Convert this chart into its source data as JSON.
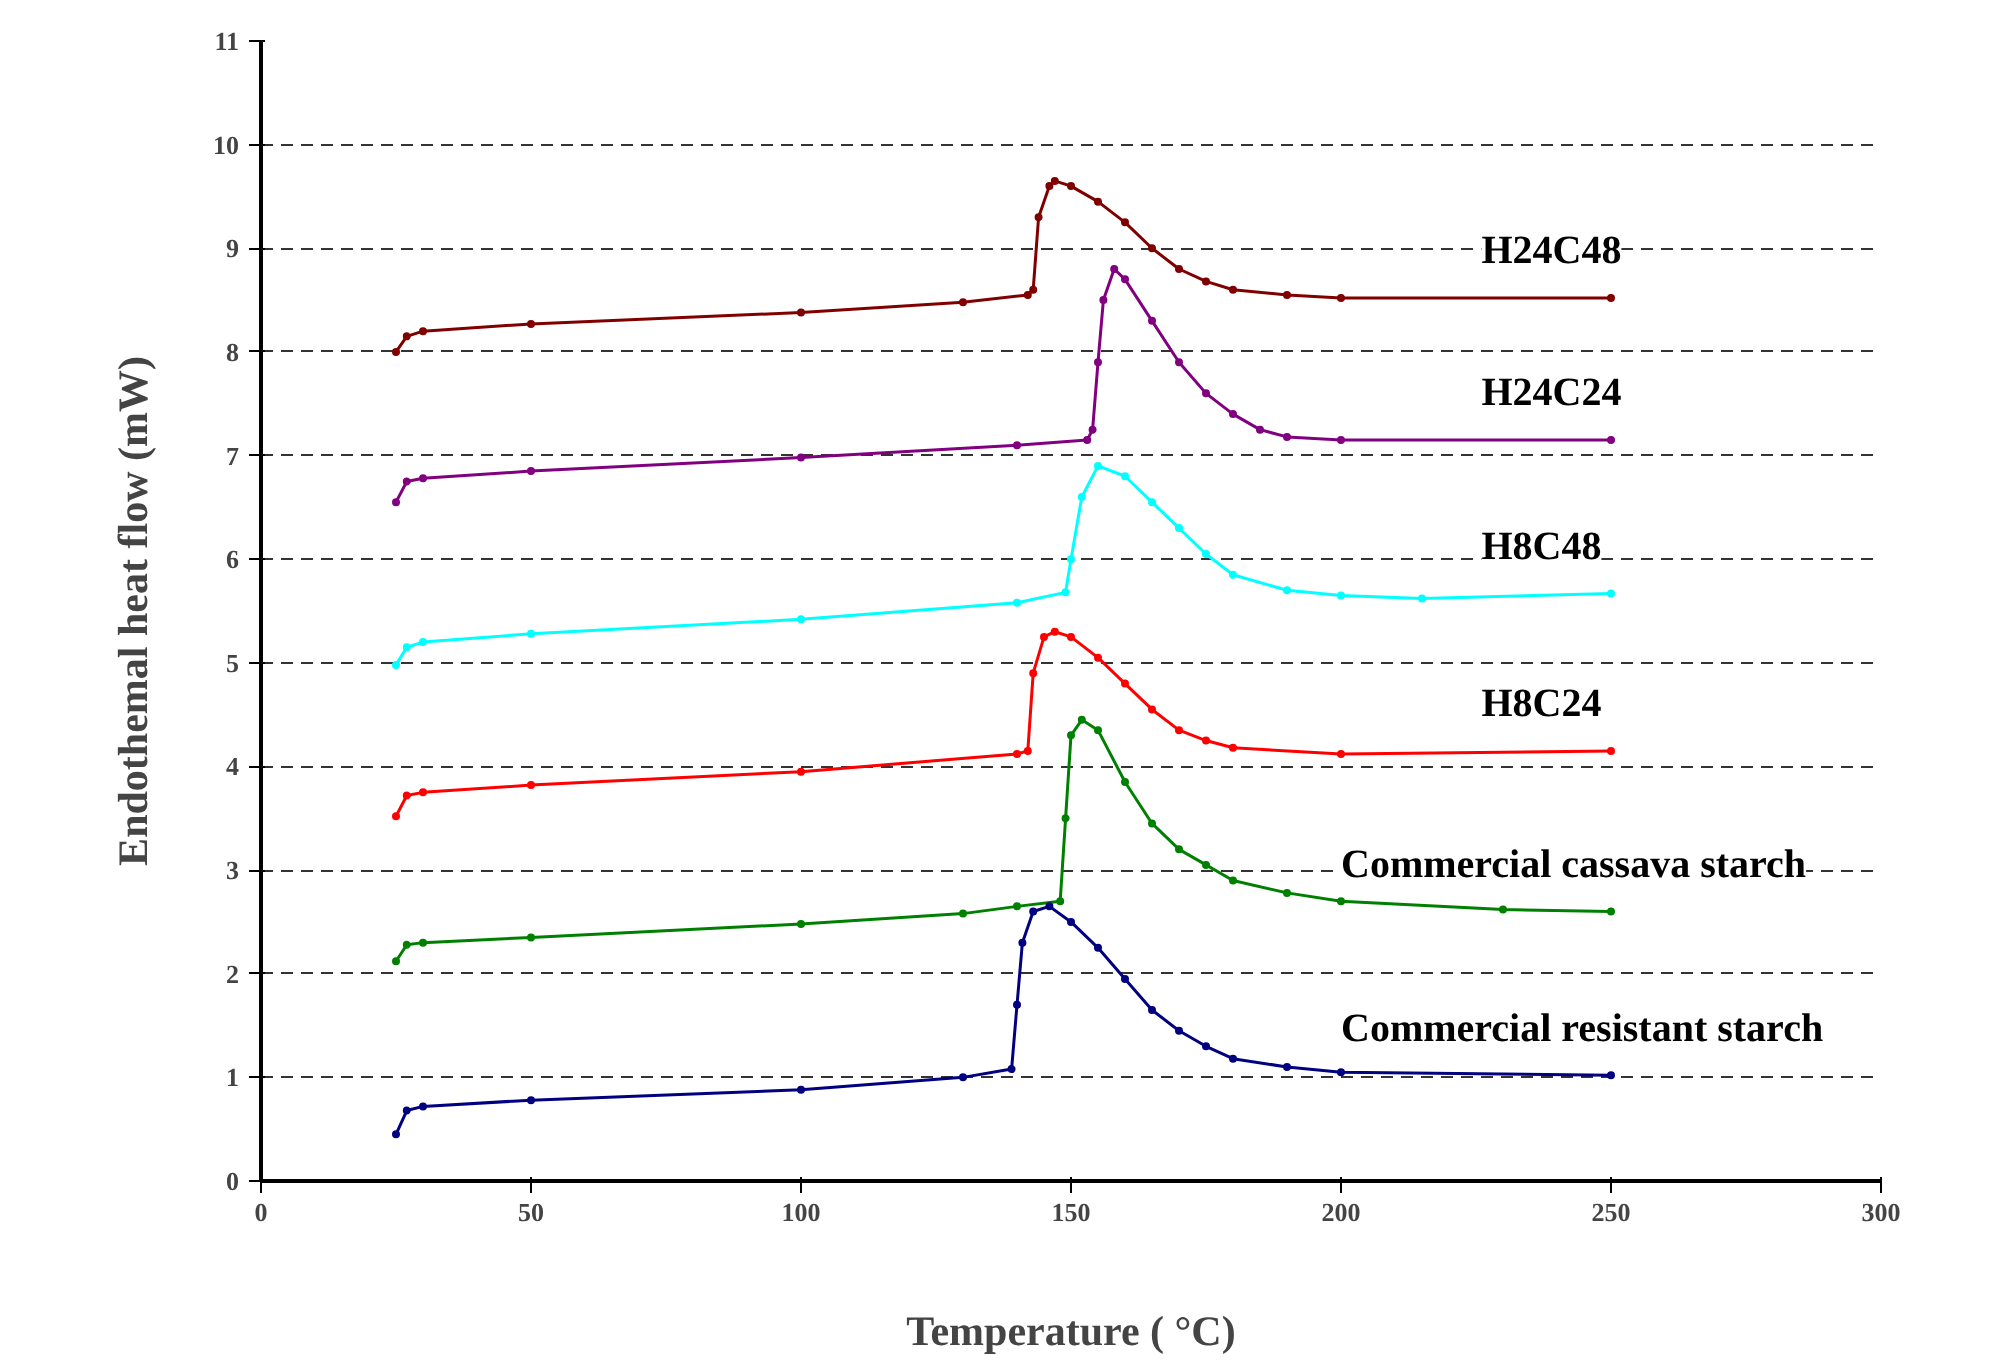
{
  "chart_data": {
    "type": "line",
    "xlabel": "Temperature ( °C)",
    "ylabel": "Endothemal heat flow (mW)",
    "xlim": [
      0,
      300
    ],
    "xticks": [
      0,
      50,
      100,
      150,
      200,
      250,
      300
    ],
    "ylim": [
      0,
      11
    ],
    "yticks": [
      0,
      1,
      2,
      3,
      4,
      5,
      6,
      7,
      8,
      9,
      10,
      11
    ],
    "grid": "y",
    "marker": "circle",
    "line_style": "solid",
    "series": [
      {
        "name": "H24C48",
        "color": "#800000",
        "x": [
          25,
          27,
          30,
          50,
          100,
          130,
          142,
          143,
          144,
          146,
          147,
          150,
          155,
          160,
          165,
          170,
          175,
          180,
          190,
          200,
          250
        ],
        "values": [
          8.0,
          8.15,
          8.2,
          8.27,
          8.38,
          8.48,
          8.55,
          8.6,
          9.3,
          9.6,
          9.65,
          9.6,
          9.45,
          9.25,
          9.0,
          8.8,
          8.68,
          8.6,
          8.55,
          8.52,
          8.52
        ]
      },
      {
        "name": "H24C24",
        "color": "#800080",
        "x": [
          25,
          27,
          30,
          50,
          100,
          140,
          153,
          154,
          155,
          156,
          158,
          160,
          165,
          170,
          175,
          180,
          185,
          190,
          200,
          250
        ],
        "values": [
          6.55,
          6.75,
          6.78,
          6.85,
          6.98,
          7.1,
          7.15,
          7.25,
          7.9,
          8.5,
          8.8,
          8.7,
          8.3,
          7.9,
          7.6,
          7.4,
          7.25,
          7.18,
          7.15,
          7.15
        ]
      },
      {
        "name": "H8C48",
        "color": "#00ffff",
        "x": [
          25,
          27,
          30,
          50,
          100,
          140,
          149,
          150,
          152,
          155,
          160,
          165,
          170,
          175,
          180,
          190,
          200,
          215,
          250
        ],
        "values": [
          4.98,
          5.15,
          5.2,
          5.28,
          5.42,
          5.58,
          5.68,
          6.0,
          6.6,
          6.9,
          6.8,
          6.55,
          6.3,
          6.05,
          5.85,
          5.7,
          5.65,
          5.62,
          5.67
        ]
      },
      {
        "name": "H8C24",
        "color": "#ff0000",
        "x": [
          25,
          27,
          30,
          50,
          100,
          140,
          142,
          143,
          145,
          147,
          150,
          155,
          160,
          165,
          170,
          175,
          180,
          200,
          250
        ],
        "values": [
          3.52,
          3.72,
          3.75,
          3.82,
          3.95,
          4.12,
          4.15,
          4.9,
          5.25,
          5.3,
          5.25,
          5.05,
          4.8,
          4.55,
          4.35,
          4.25,
          4.18,
          4.12,
          4.15
        ]
      },
      {
        "name": "Commercial cassava starch",
        "color": "#008000",
        "x": [
          25,
          27,
          30,
          50,
          100,
          130,
          140,
          148,
          149,
          150,
          152,
          155,
          160,
          165,
          170,
          175,
          180,
          190,
          200,
          230,
          250
        ],
        "values": [
          2.12,
          2.28,
          2.3,
          2.35,
          2.48,
          2.58,
          2.65,
          2.7,
          3.5,
          4.3,
          4.45,
          4.35,
          3.85,
          3.45,
          3.2,
          3.05,
          2.9,
          2.78,
          2.7,
          2.62,
          2.6
        ]
      },
      {
        "name": "Commercial resistant starch",
        "color": "#000080",
        "x": [
          25,
          27,
          30,
          50,
          100,
          130,
          139,
          140,
          141,
          143,
          146,
          150,
          155,
          160,
          165,
          170,
          175,
          180,
          190,
          200,
          250
        ],
        "values": [
          0.45,
          0.68,
          0.72,
          0.78,
          0.88,
          1.0,
          1.08,
          1.7,
          2.3,
          2.6,
          2.65,
          2.5,
          2.25,
          1.95,
          1.65,
          1.45,
          1.3,
          1.18,
          1.1,
          1.05,
          1.02
        ]
      }
    ]
  }
}
